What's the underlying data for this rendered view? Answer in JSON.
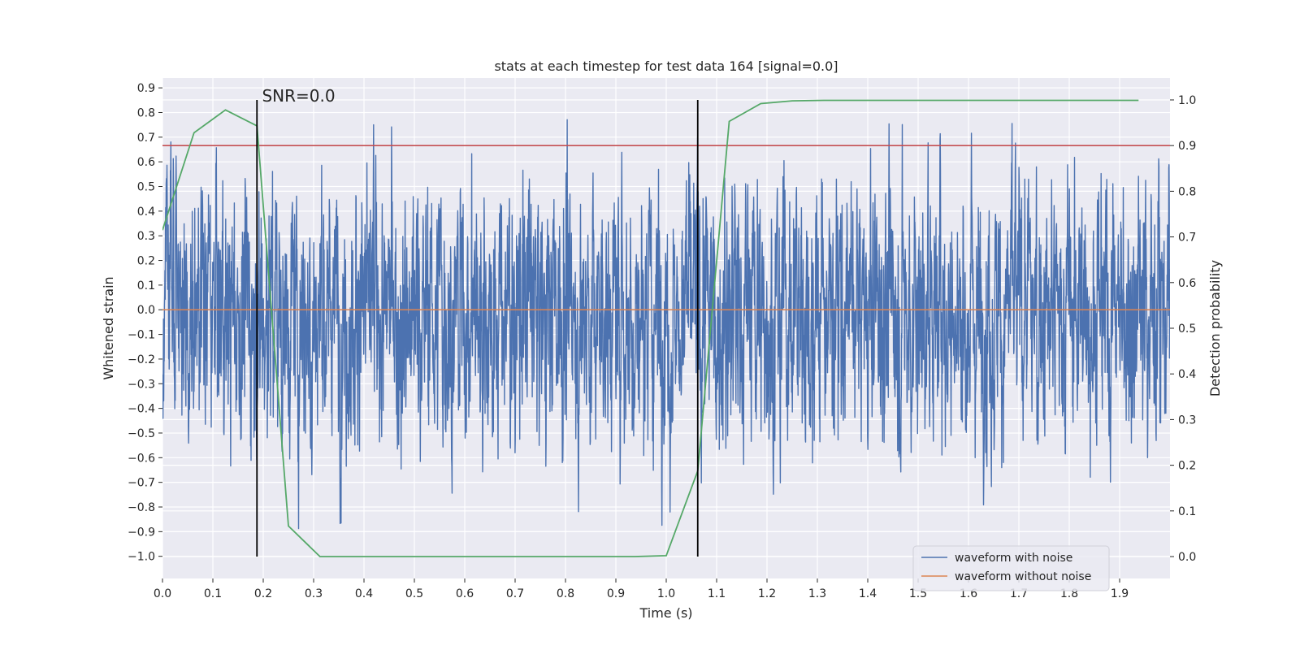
{
  "chart_data": {
    "type": "line",
    "title": "stats at each timestep for test data 164 [signal=0.0]",
    "xlabel": "Time (s)",
    "ylabel": "Whitened strain",
    "y2label": "Detection probability",
    "xlim": [
      0.0,
      2.0
    ],
    "ylim": [
      -1.09,
      0.94
    ],
    "y2lim": [
      -0.048,
      1.048
    ],
    "xticks": [
      "0.0",
      "0.1",
      "0.2",
      "0.3",
      "0.4",
      "0.5",
      "0.6",
      "0.7",
      "0.8",
      "0.9",
      "1.0",
      "1.1",
      "1.2",
      "1.3",
      "1.4",
      "1.5",
      "1.6",
      "1.7",
      "1.8",
      "1.9"
    ],
    "yticks": [
      "0.9",
      "0.8",
      "0.7",
      "0.6",
      "0.5",
      "0.4",
      "0.3",
      "0.2",
      "0.1",
      "0.0",
      "-0.1",
      "-0.2",
      "-0.3",
      "-0.4",
      "-0.5",
      "-0.6",
      "-0.7",
      "-0.8",
      "-0.9",
      "-1.0"
    ],
    "y2ticks": [
      "0.0",
      "0.1",
      "0.2",
      "0.3",
      "0.4",
      "0.5",
      "0.6",
      "0.7",
      "0.8",
      "0.9",
      "1.0"
    ],
    "grid": true,
    "legend_position": "lower-right",
    "colors": {
      "noise": "#4c72b0",
      "clean": "#dd8452",
      "probability": "#55a868",
      "threshold": "#c44e52",
      "markers": "#000000",
      "background": "#eaeaf2",
      "grid": "#ffffff"
    },
    "series": [
      {
        "name": "waveform with noise",
        "axis": "left",
        "sample_count": 4096,
        "x_range": [
          0.0,
          2.0
        ],
        "y_range": [
          -1.0,
          0.85
        ]
      },
      {
        "name": "waveform without noise",
        "axis": "left",
        "x": [
          0.0,
          2.0
        ],
        "y": [
          0.0,
          0.0
        ]
      },
      {
        "axis": "right",
        "x": [
          0.0,
          0.0625,
          0.125,
          0.1875,
          0.25,
          0.3125,
          0.375,
          0.4375,
          0.5,
          0.5625,
          0.625,
          0.6875,
          0.75,
          0.8125,
          0.875,
          0.9375,
          1.0,
          1.0625,
          1.125,
          1.1875,
          1.25,
          1.3125,
          1.375,
          1.4375,
          1.5,
          1.5625,
          1.625,
          1.6875,
          1.75,
          1.8125,
          1.875,
          1.9375
        ],
        "y": [
          0.715,
          0.928,
          0.978,
          0.943,
          0.067,
          0.0,
          0.0,
          0.0,
          0.0,
          0.0,
          0.0,
          0.0,
          0.0,
          0.0,
          0.0,
          0.0,
          0.002,
          0.188,
          0.953,
          0.992,
          0.998,
          0.999,
          0.999,
          0.999,
          0.999,
          0.999,
          0.999,
          0.999,
          0.999,
          0.999,
          0.999,
          0.999
        ]
      }
    ],
    "threshold": {
      "axis": "right",
      "y": 0.9
    },
    "marker_lines": {
      "x": [
        0.1875,
        1.0625
      ],
      "y2_range": [
        0.0,
        1.0
      ]
    },
    "annotations": [
      {
        "text": "SNR=0.0",
        "x": 0.1975,
        "y": 0.845
      }
    ]
  }
}
